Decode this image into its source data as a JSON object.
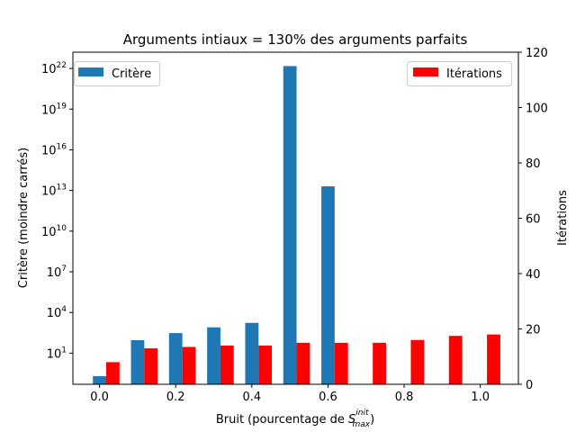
{
  "chart_data": {
    "type": "bar",
    "title": "Arguments intiaux = 130% des arguments parfaits",
    "xlabel_prefix": "Bruit (pourcentage de ",
    "xlabel_math_base": "S",
    "xlabel_math_sup": "init",
    "xlabel_math_sub": "max",
    "xlabel_suffix": ")",
    "ylabel_left": "Critère (moindre carrés)",
    "ylabel_right": "Itérations",
    "x": [
      0.0,
      0.1,
      0.2,
      0.3,
      0.4,
      0.5,
      0.6,
      0.7,
      0.8,
      0.9,
      1.0
    ],
    "x_ticks": [
      "0.0",
      "0.2",
      "0.4",
      "0.6",
      "0.8",
      "1.0"
    ],
    "xlim": [
      -0.07,
      1.1
    ],
    "y_left": {
      "scale": "log",
      "ylim_log10": [
        -1.3,
        23.2
      ],
      "ticks": [
        {
          "base": "10",
          "exp": "1"
        },
        {
          "base": "10",
          "exp": "4"
        },
        {
          "base": "10",
          "exp": "7"
        },
        {
          "base": "10",
          "exp": "10"
        },
        {
          "base": "10",
          "exp": "13"
        },
        {
          "base": "10",
          "exp": "16"
        },
        {
          "base": "10",
          "exp": "19"
        },
        {
          "base": "10",
          "exp": "22"
        }
      ]
    },
    "y_right": {
      "scale": "linear",
      "ylim": [
        0,
        120
      ],
      "ticks": [
        "0",
        "20",
        "40",
        "60",
        "80",
        "100",
        "120"
      ]
    },
    "series": [
      {
        "name": "Critère",
        "axis": "left",
        "color": "#1f77b4",
        "values": [
          0.2,
          90,
          300,
          800,
          1700,
          1.5e+22,
          20000000000000.0,
          null,
          null,
          null,
          null
        ]
      },
      {
        "name": "Itérations",
        "axis": "right",
        "color": "#ff0000",
        "values": [
          8,
          13,
          13.5,
          14,
          14,
          15,
          15,
          15,
          16,
          17.5,
          18
        ]
      }
    ],
    "legend_left_position": "upper-left",
    "legend_right_position": "upper-right",
    "grid": false
  }
}
